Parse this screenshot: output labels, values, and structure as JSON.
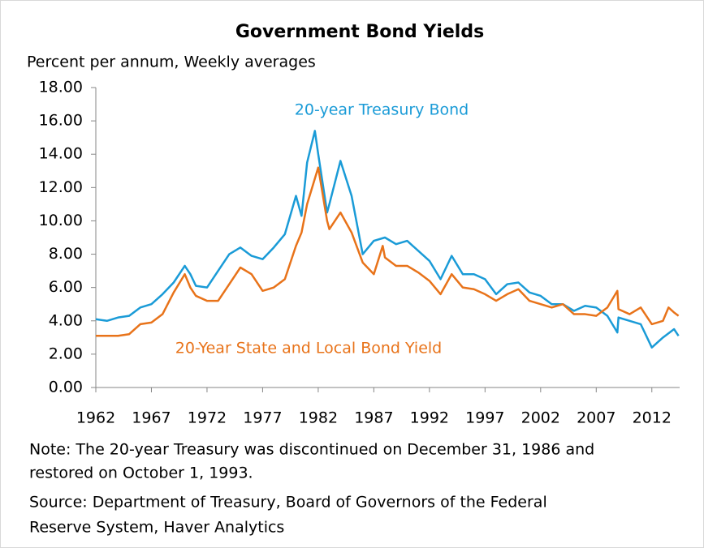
{
  "chart_data": {
    "type": "line",
    "title": "Government Bond Yields",
    "subtitle": "Percent per annum, Weekly averages",
    "notes": [
      "Note: The 20-year Treasury was discontinued on December 31, 1986 and",
      "restored on October 1, 1993.",
      "Source: Department of Treasury, Board of Governors of the Federal",
      "Reserve System, Haver Analytics"
    ],
    "xlim": [
      1962,
      2014.5
    ],
    "xticks": [
      1962,
      1967,
      1972,
      1977,
      1982,
      1987,
      1992,
      1997,
      2002,
      2007,
      2012
    ],
    "ylim": [
      0,
      18
    ],
    "yticks": [
      {
        "value": 0,
        "label": "0.00"
      },
      {
        "value": 2,
        "label": "2.00"
      },
      {
        "value": 4,
        "label": "4.00"
      },
      {
        "value": 6,
        "label": "6.00"
      },
      {
        "value": 8,
        "label": "8.00"
      },
      {
        "value": 10,
        "label": "10.00"
      },
      {
        "value": 12,
        "label": "12.00"
      },
      {
        "value": 14,
        "label": "14.00"
      },
      {
        "value": 16,
        "label": "16.00"
      },
      {
        "value": 18,
        "label": "18.00"
      }
    ],
    "grid": false,
    "series": [
      {
        "name": "20-year Treasury Bond",
        "color": "#1a9bd7",
        "x": [
          1962,
          1963,
          1964,
          1965,
          1966,
          1967,
          1968,
          1969,
          1970,
          1970.5,
          1971,
          1972,
          1973,
          1974,
          1975,
          1976,
          1977,
          1978,
          1979,
          1980,
          1980.5,
          1981,
          1981.7,
          1982,
          1982.8,
          1983,
          1984,
          1985,
          1986,
          1987,
          1988,
          1989,
          1990,
          1991,
          1992,
          1993,
          1994,
          1995,
          1996,
          1997,
          1998,
          1999,
          2000,
          2001,
          2002,
          2003,
          2004,
          2005,
          2006,
          2007,
          2008,
          2008.9,
          2009,
          2010,
          2011,
          2012,
          2013,
          2014,
          2014.4
        ],
        "values": [
          4.1,
          4.0,
          4.2,
          4.3,
          4.8,
          5.0,
          5.6,
          6.3,
          7.3,
          6.8,
          6.1,
          6.0,
          7.0,
          8.0,
          8.4,
          7.9,
          7.7,
          8.4,
          9.2,
          11.5,
          10.3,
          13.5,
          15.4,
          14.0,
          10.5,
          11.0,
          13.6,
          11.5,
          8.0,
          8.8,
          9.0,
          8.6,
          8.8,
          8.2,
          7.6,
          6.5,
          7.9,
          6.8,
          6.8,
          6.5,
          5.6,
          6.2,
          6.3,
          5.7,
          5.5,
          5.0,
          5.0,
          4.6,
          4.9,
          4.8,
          4.3,
          3.3,
          4.2,
          4.0,
          3.8,
          2.4,
          3.0,
          3.5,
          3.1
        ]
      },
      {
        "name": "20-Year State and Local Bond Yield",
        "color": "#e8731a",
        "x": [
          1962,
          1963,
          1964,
          1965,
          1966,
          1967,
          1968,
          1969,
          1970,
          1970.5,
          1971,
          1972,
          1973,
          1974,
          1975,
          1976,
          1977,
          1978,
          1979,
          1980,
          1980.5,
          1981,
          1982,
          1982.8,
          1983,
          1984,
          1985,
          1986,
          1987,
          1987.8,
          1988,
          1989,
          1990,
          1991,
          1992,
          1993,
          1994,
          1995,
          1996,
          1997,
          1998,
          1999,
          2000,
          2001,
          2002,
          2003,
          2004,
          2005,
          2006,
          2007,
          2008,
          2008.9,
          2009,
          2010,
          2011,
          2012,
          2013,
          2013.5,
          2014,
          2014.4
        ],
        "values": [
          3.1,
          3.1,
          3.1,
          3.2,
          3.8,
          3.9,
          4.4,
          5.7,
          6.8,
          6.0,
          5.5,
          5.2,
          5.2,
          6.2,
          7.2,
          6.8,
          5.8,
          6.0,
          6.5,
          8.5,
          9.3,
          11.0,
          13.2,
          10.0,
          9.5,
          10.5,
          9.3,
          7.5,
          6.8,
          8.5,
          7.8,
          7.3,
          7.3,
          6.9,
          6.4,
          5.6,
          6.8,
          6.0,
          5.9,
          5.6,
          5.2,
          5.6,
          5.9,
          5.2,
          5.0,
          4.8,
          5.0,
          4.4,
          4.4,
          4.3,
          4.8,
          5.8,
          4.7,
          4.4,
          4.8,
          3.8,
          4.0,
          4.8,
          4.5,
          4.3
        ]
      }
    ]
  }
}
